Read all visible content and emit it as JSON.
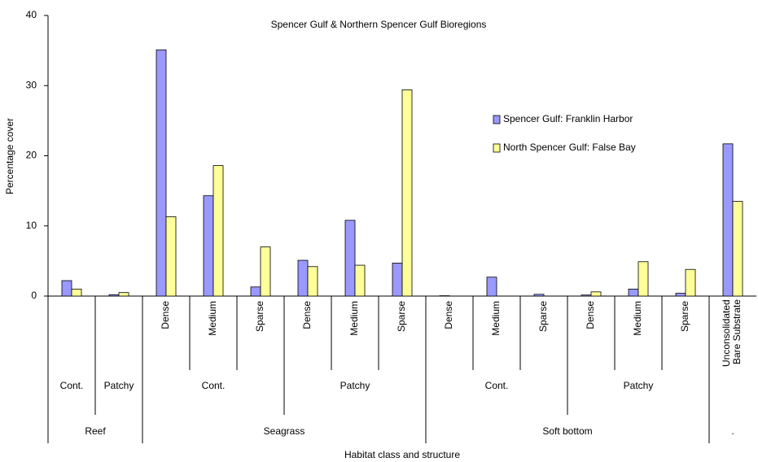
{
  "chart_data": {
    "type": "bar",
    "title": "Spencer Gulf & Northern Spencer Gulf Bioregions",
    "ylabel": "Percentage cover",
    "xlabel": "Habitat class and structure",
    "categories": [
      null,
      null,
      "Dense",
      "Medium",
      "Sparse",
      "Dense",
      "Medium",
      "Sparse",
      "Dense",
      "Medium",
      "Sparse",
      "Dense",
      "Medium",
      "Sparse",
      "Unconsolidated Bare Substrate"
    ],
    "structure_groups": [
      {
        "label": "Cont.",
        "count": 1
      },
      {
        "label": "Patchy",
        "count": 1
      },
      {
        "label": "Cont.",
        "count": 3
      },
      {
        "label": "Patchy",
        "count": 3
      },
      {
        "label": "Cont.",
        "count": 3
      },
      {
        "label": "Patchy",
        "count": 3
      },
      {
        "label": null,
        "count": 1
      }
    ],
    "class_groups": [
      {
        "label": "Reef",
        "count": 2
      },
      {
        "label": "Seagrass",
        "count": 6
      },
      {
        "label": "Soft bottom",
        "count": 6
      },
      {
        "label": ".",
        "count": 1
      }
    ],
    "series": [
      {
        "name": "Spencer Gulf: Franklin Harbor",
        "color": "#9999ff",
        "values": [
          2.2,
          0.2,
          35.1,
          14.3,
          1.3,
          5.1,
          10.8,
          4.7,
          0.05,
          2.7,
          0.25,
          0.15,
          1.0,
          0.4,
          21.7
        ]
      },
      {
        "name": "North Spencer Gulf: False Bay",
        "color": "#ffff99",
        "values": [
          1.0,
          0.5,
          11.3,
          18.6,
          7.0,
          4.2,
          4.4,
          29.4,
          0,
          0,
          0,
          0.6,
          4.9,
          3.8,
          13.5
        ]
      }
    ],
    "ylim": [
      0,
      40
    ],
    "yticks": [
      0,
      10,
      20,
      30,
      40
    ],
    "grid": false
  }
}
